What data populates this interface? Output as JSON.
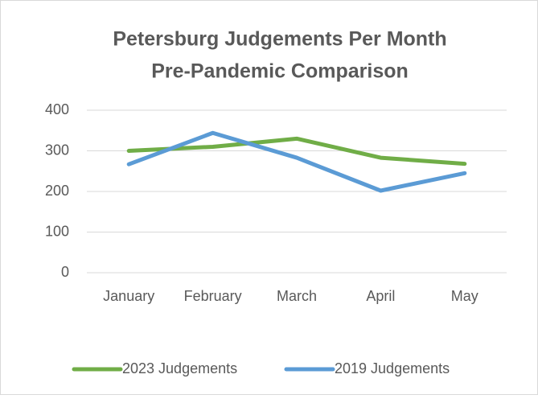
{
  "chart_data": {
    "type": "line",
    "title": [
      "Petersburg Judgements Per Month",
      "Pre-Pandemic Comparison"
    ],
    "categories": [
      "January",
      "February",
      "March",
      "April",
      "May"
    ],
    "series": [
      {
        "name": "2023 Judgements",
        "color": "#70ad47",
        "values": [
          300,
          310,
          330,
          283,
          268
        ]
      },
      {
        "name": "2019 Judgements",
        "color": "#5b9bd5",
        "values": [
          267,
          344,
          283,
          202,
          245
        ]
      }
    ],
    "ylim": [
      0,
      400
    ],
    "yticks": [
      0,
      100,
      200,
      300,
      400
    ],
    "grid": true,
    "legend": "bottom"
  }
}
